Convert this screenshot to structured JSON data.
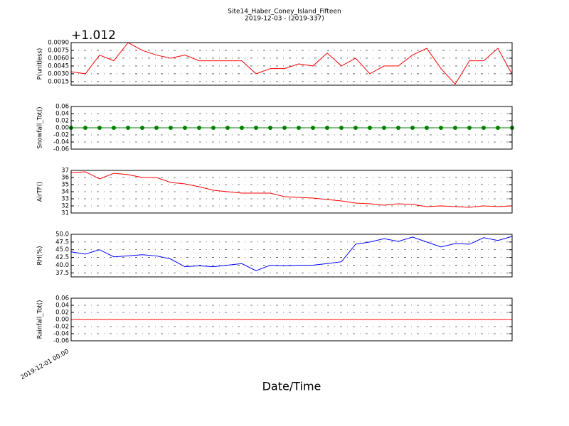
{
  "title": "Site14_Haber_Coney_Island_Fifteen",
  "subtitle": "2019-12-03 - (2019-337)",
  "xlabel": "Date/Time",
  "categories": [
    "2019-12-01 00:00",
    null,
    null,
    null,
    null,
    null,
    null,
    null,
    null,
    null,
    null,
    null,
    null,
    null,
    null,
    null,
    null,
    null,
    null,
    null,
    null,
    null,
    null,
    null,
    null,
    null,
    null,
    null,
    null,
    null,
    null,
    null
  ],
  "chart_data": [
    {
      "type": "line",
      "ylabel": "P(unitless)",
      "offset_label": "+1.012",
      "color": "#ff0000",
      "grid": true,
      "ylim": [
        0.0008,
        0.009
      ],
      "yticks": [
        {
          "value": 0.0015,
          "label": "0.0015"
        },
        {
          "value": 0.003,
          "label": "0.0030"
        },
        {
          "value": 0.0045,
          "label": "0.0045"
        },
        {
          "value": 0.006,
          "label": "0.0060"
        },
        {
          "value": 0.0075,
          "label": "0.0075"
        },
        {
          "value": 0.009,
          "label": "0.0090"
        }
      ],
      "values": [
        0.0034,
        0.003,
        0.0066,
        0.0055,
        0.009,
        0.0075,
        0.0066,
        0.006,
        0.0066,
        0.0055,
        0.0055,
        0.0055,
        0.0055,
        0.003,
        0.004,
        0.004,
        0.0049,
        0.0045,
        0.007,
        0.0045,
        0.006,
        0.003,
        0.0045,
        0.0045,
        0.0066,
        0.0079,
        0.004,
        0.001,
        0.0055,
        0.0055,
        0.0079,
        0.0029
      ]
    },
    {
      "type": "line",
      "ylabel": "Snowfall_Tot()",
      "color": "#008000",
      "marker": "circle",
      "grid": true,
      "ylim": [
        -0.06,
        0.06
      ],
      "yticks": [
        -0.06,
        -0.04,
        -0.02,
        {
          "value": 0,
          "label": "0.00"
        },
        0.02,
        0.04,
        0.06
      ],
      "values": [
        0,
        0,
        0,
        0,
        0,
        0,
        0,
        0,
        0,
        0,
        0,
        0,
        0,
        0,
        0,
        0,
        0,
        0,
        0,
        0,
        0,
        0,
        0,
        0,
        0,
        0,
        0,
        0,
        0,
        0,
        0,
        0
      ]
    },
    {
      "type": "line",
      "ylabel": "AirTF()",
      "color": "#ff0000",
      "grid": true,
      "ylim": [
        31,
        37
      ],
      "yticks": [
        31,
        32,
        33,
        34,
        35,
        36,
        37
      ],
      "values": [
        36.7,
        36.8,
        35.8,
        36.6,
        36.4,
        36.0,
        36.0,
        35.3,
        35.1,
        34.7,
        34.2,
        34.0,
        33.8,
        33.8,
        33.8,
        33.3,
        33.2,
        33.1,
        32.9,
        32.7,
        32.4,
        32.3,
        32.1,
        32.3,
        32.2,
        31.9,
        32.0,
        31.9,
        31.8,
        32.0,
        31.9,
        32.0
      ]
    },
    {
      "type": "line",
      "ylabel": "RH(%)",
      "color": "#0000ff",
      "grid": true,
      "ylim": [
        36.2,
        50.0
      ],
      "yticks": [
        37.5,
        {
          "value": 40,
          "label": "40.0"
        },
        42.5,
        {
          "value": 45,
          "label": "45.0"
        },
        47.5,
        {
          "value": 50,
          "label": "50.0"
        }
      ],
      "values": [
        44.3,
        43.6,
        45.0,
        42.7,
        43.0,
        43.4,
        43.0,
        42.0,
        39.5,
        39.8,
        39.5,
        40.0,
        40.5,
        38.2,
        40.0,
        39.8,
        40.0,
        40.0,
        40.5,
        41.1,
        46.8,
        47.5,
        48.6,
        47.7,
        49.1,
        47.5,
        45.9,
        47.0,
        46.8,
        48.9,
        48.0,
        49.3
      ]
    },
    {
      "type": "line",
      "ylabel": "Rainfall_Tot()",
      "color": "#ff0000",
      "grid": true,
      "ylim": [
        -0.06,
        0.06
      ],
      "yticks": [
        -0.06,
        -0.04,
        -0.02,
        {
          "value": 0,
          "label": "0.00"
        },
        0.02,
        0.04,
        0.06
      ],
      "values": [
        0,
        0,
        0,
        0,
        0,
        0,
        0,
        0,
        0,
        0,
        0,
        0,
        0,
        0,
        0,
        0,
        0,
        0,
        0,
        0,
        0,
        0,
        0,
        0,
        0,
        0,
        0,
        0,
        0,
        0,
        0,
        0
      ]
    }
  ]
}
